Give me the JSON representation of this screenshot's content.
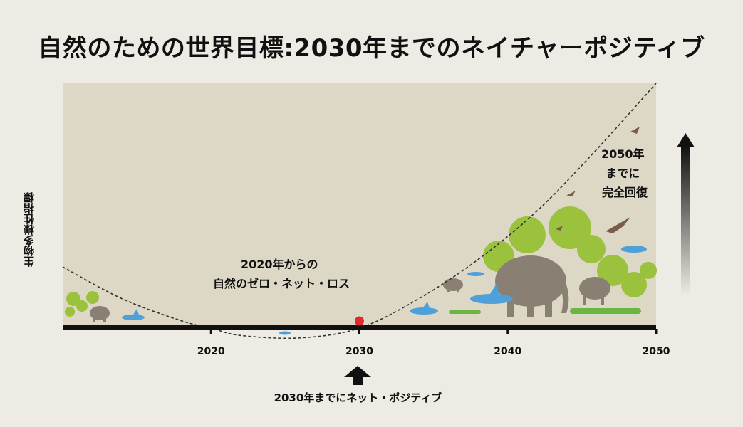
{
  "title": "自然のための世界目標:2030年までのネイチャーポジティブ",
  "chart_data": {
    "type": "line",
    "title": "自然のための世界目標:2030年までのネイチャーポジティブ",
    "ylabel": "生物多様性指標",
    "xlabel": "",
    "x_ticks": [
      2020,
      2030,
      2040,
      2050
    ],
    "xlim": [
      2010,
      2050
    ],
    "ylim": [
      -0.2,
      1.0
    ],
    "series": [
      {
        "x": [
          2010,
          2014,
          2018,
          2020,
          2022,
          2026,
          2030,
          2034,
          2038,
          2042,
          2046,
          2050
        ],
        "y": [
          0.25,
          0.12,
          0.03,
          0.0,
          -0.03,
          -0.04,
          0.0,
          0.12,
          0.28,
          0.48,
          0.73,
          1.0
        ]
      }
    ],
    "highlight_point": {
      "x": 2030,
      "y": 0.0
    },
    "annotations": {
      "zero_loss": [
        "2020年からの",
        "自然のゼロ・ネット・ロス"
      ],
      "recovery": [
        "2050年",
        "までに",
        "完全回復"
      ],
      "positive": "2030年までにネット・ポジティブ"
    },
    "colors": {
      "plot_bg": "#dcd8c5",
      "curve": "#333333",
      "axis": "#111111",
      "point": "#e0282d",
      "vegetation": "#9bc23c",
      "elephant": "#8a7f73",
      "shark": "#4da0d8"
    }
  }
}
